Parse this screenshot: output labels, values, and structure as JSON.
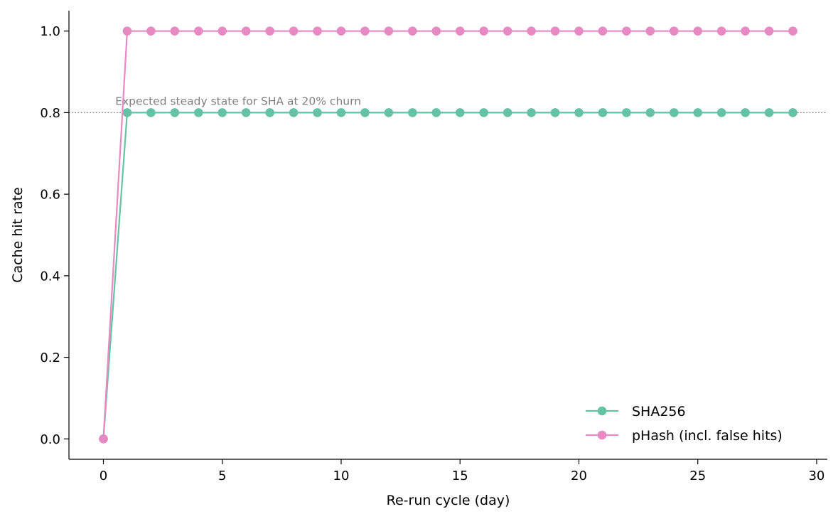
{
  "chart_data": {
    "type": "line",
    "title": "",
    "xlabel": "Re-run cycle (day)",
    "ylabel": "Cache hit rate",
    "xlim": [
      -1.45,
      30.45
    ],
    "ylim": [
      -0.05,
      1.05
    ],
    "xticks": [
      0,
      5,
      10,
      15,
      20,
      25,
      30
    ],
    "yticks": [
      0.0,
      0.2,
      0.4,
      0.6,
      0.8,
      1.0
    ],
    "xtick_labels": [
      "0",
      "5",
      "10",
      "15",
      "20",
      "25",
      "30"
    ],
    "ytick_labels": [
      "0.0",
      "0.2",
      "0.4",
      "0.6",
      "0.8",
      "1.0"
    ],
    "grid": false,
    "legend_position": "lower-right",
    "x": [
      0,
      1,
      2,
      3,
      4,
      5,
      6,
      7,
      8,
      9,
      10,
      11,
      12,
      13,
      14,
      15,
      16,
      17,
      18,
      19,
      20,
      21,
      22,
      23,
      24,
      25,
      26,
      27,
      28,
      29
    ],
    "series": [
      {
        "name": "SHA256",
        "color": "#66c2a5",
        "marker": "circle",
        "values": [
          0.0,
          0.8,
          0.8,
          0.8,
          0.8,
          0.8,
          0.8,
          0.8,
          0.8,
          0.8,
          0.8,
          0.8,
          0.8,
          0.8,
          0.8,
          0.8,
          0.8,
          0.8,
          0.8,
          0.8,
          0.8,
          0.8,
          0.8,
          0.8,
          0.8,
          0.8,
          0.8,
          0.8,
          0.8,
          0.8
        ]
      },
      {
        "name": "pHash (incl. false hits)",
        "color": "#e78ac3",
        "marker": "circle",
        "values": [
          0.0,
          1.0,
          1.0,
          1.0,
          1.0,
          1.0,
          1.0,
          1.0,
          1.0,
          1.0,
          1.0,
          1.0,
          1.0,
          1.0,
          1.0,
          1.0,
          1.0,
          1.0,
          1.0,
          1.0,
          1.0,
          1.0,
          1.0,
          1.0,
          1.0,
          1.0,
          1.0,
          1.0,
          1.0,
          1.0
        ]
      }
    ],
    "reference_line": {
      "y": 0.8,
      "style": "dotted",
      "color": "#808080",
      "label": "Expected steady state for SHA at 20% churn",
      "label_x": 0.5
    }
  }
}
